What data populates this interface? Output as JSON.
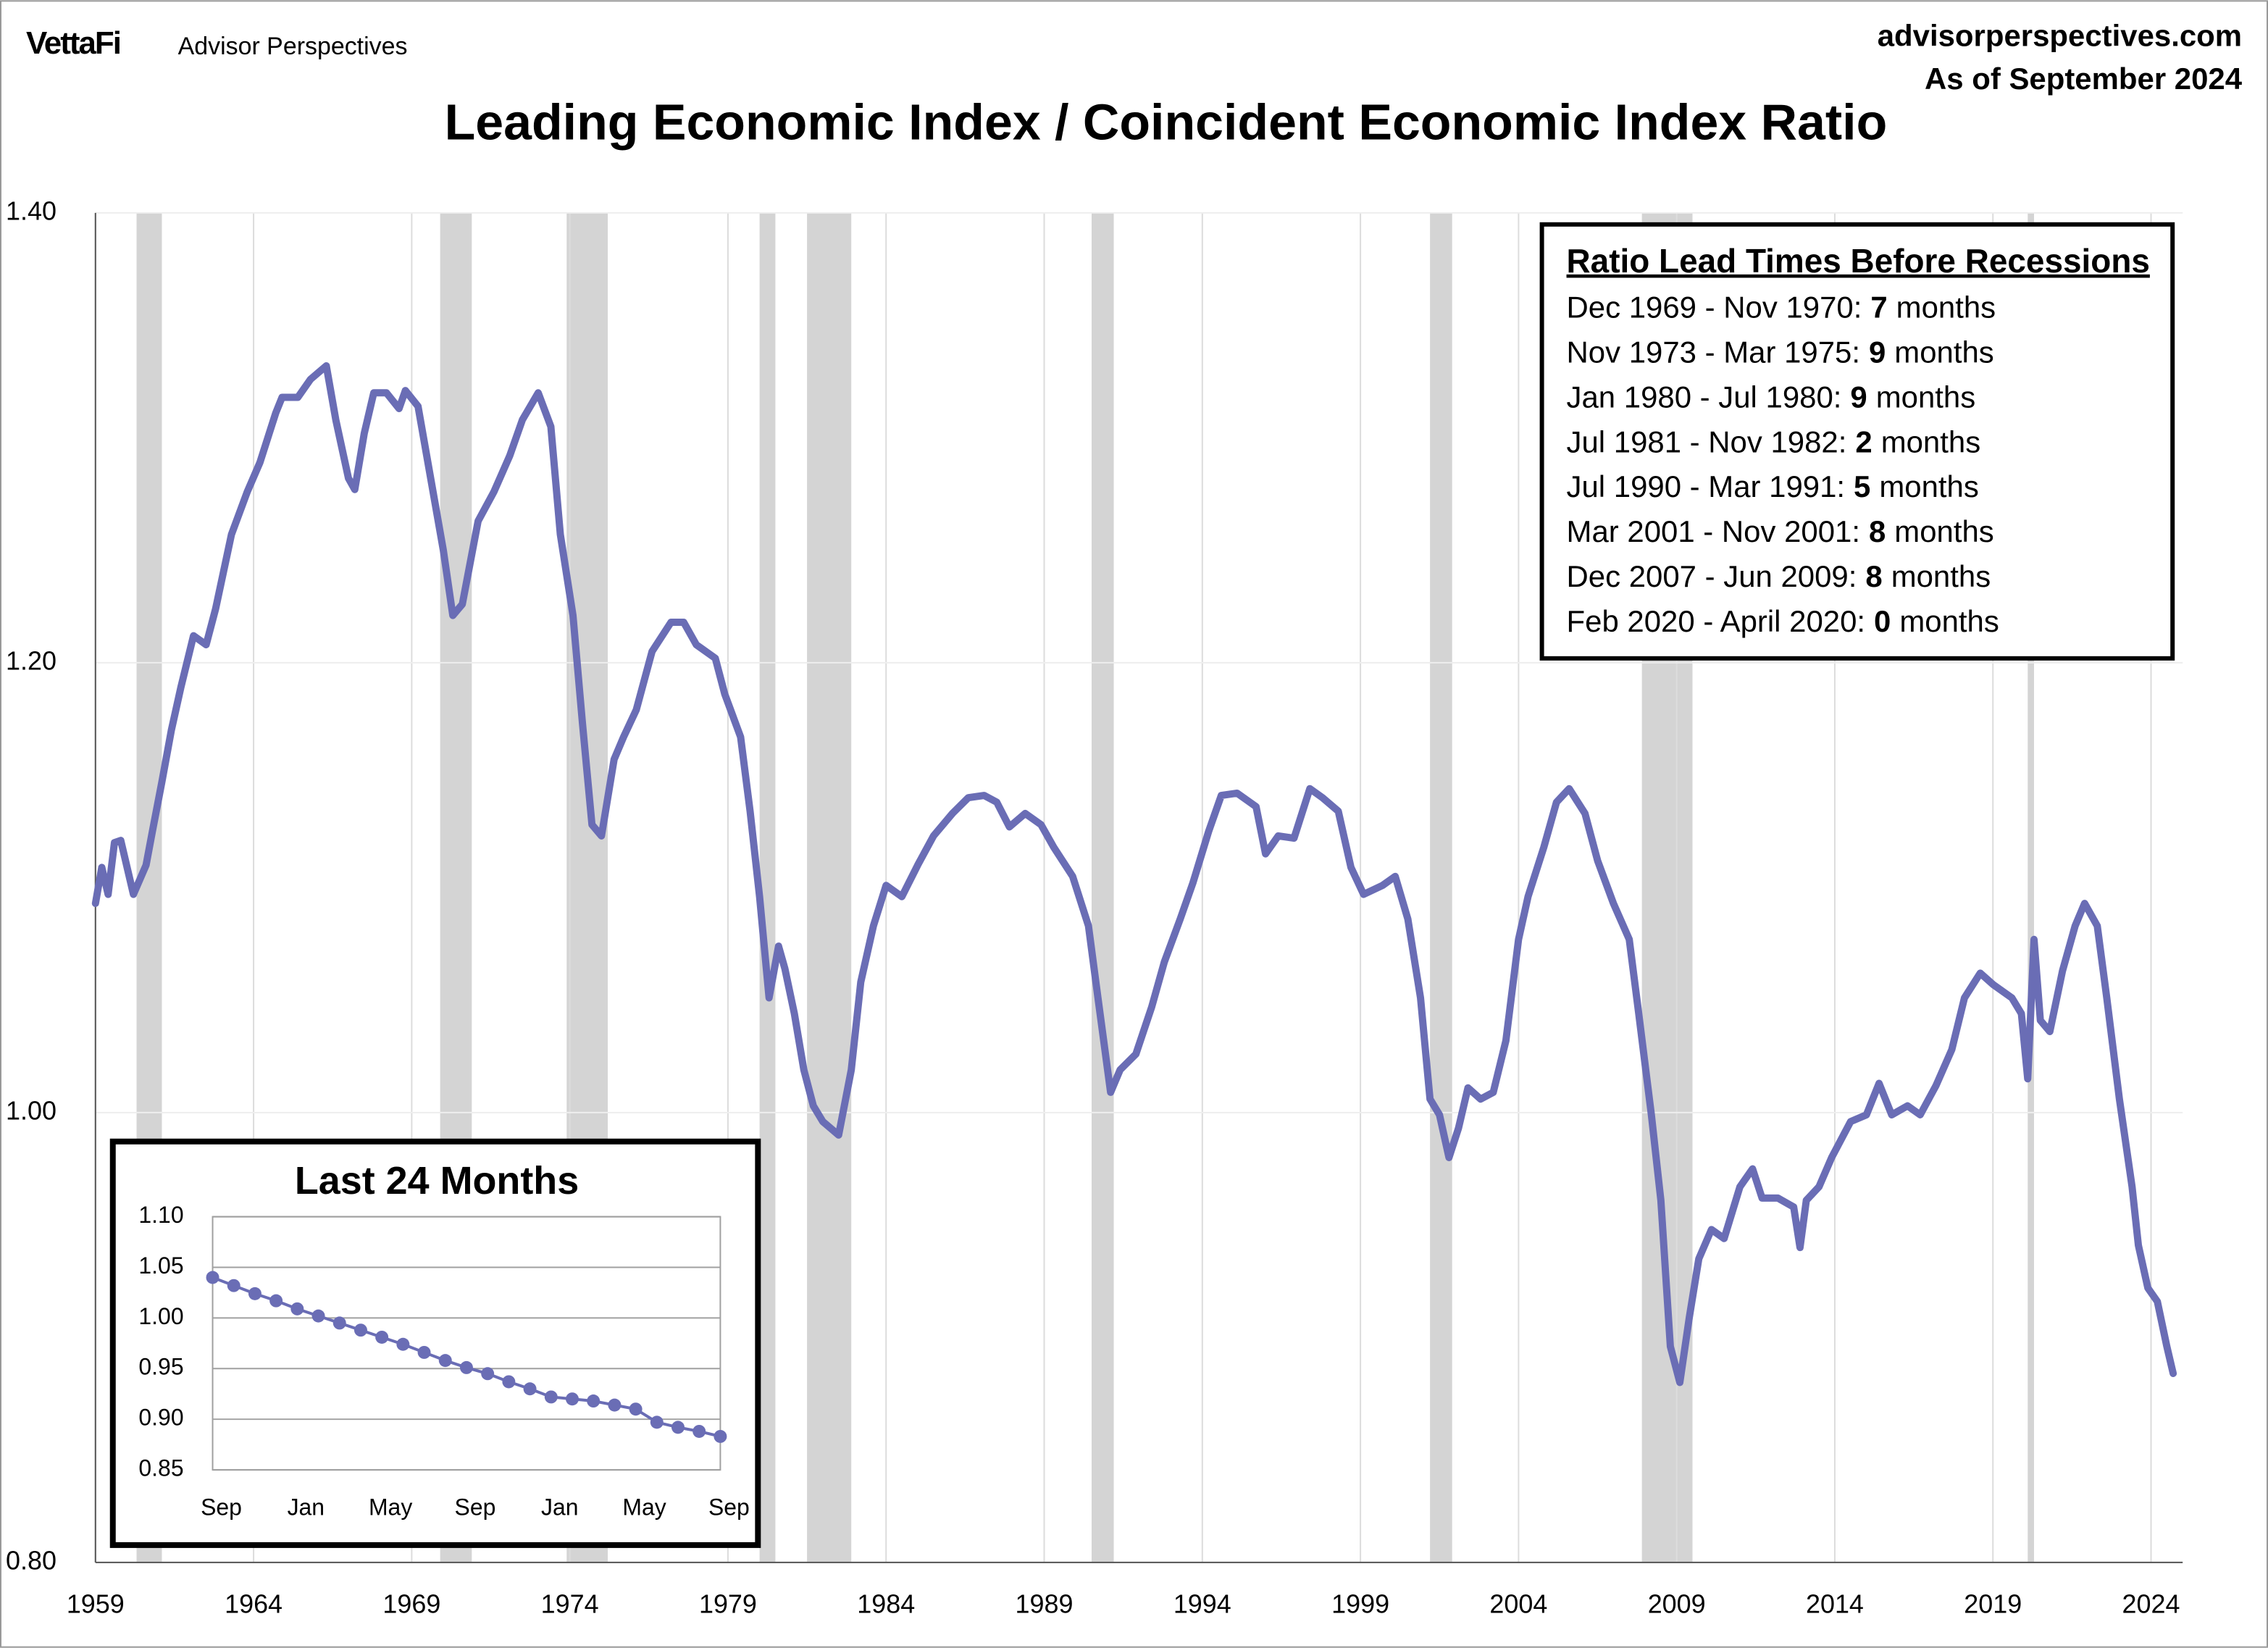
{
  "header": {
    "logo": "VettaFi",
    "brand": "Advisor Perspectives",
    "site": "advisorperspectives.com",
    "date": "As of September 2024"
  },
  "chart_data": [
    {
      "type": "line",
      "title": "Leading Economic Index / Coincident Economic Index Ratio",
      "color": "#6a6db5",
      "xlim": [
        1959,
        2025
      ],
      "xticks": [
        1959,
        1964,
        1969,
        1974,
        1979,
        1984,
        1989,
        1994,
        1999,
        2004,
        2009,
        2014,
        2019,
        2024
      ],
      "ylim": [
        0.8,
        1.4
      ],
      "yticks": [
        {
          "value": 0.8,
          "label": "0.80"
        },
        {
          "value": 1.0,
          "label": "1.00"
        },
        {
          "value": 1.2,
          "label": "1.20"
        },
        {
          "value": 1.4,
          "label": "1.40"
        }
      ],
      "grid": true,
      "recession_periods": [
        [
          1960.3,
          1961.1
        ],
        [
          1969.9,
          1970.9
        ],
        [
          1973.9,
          1975.2
        ],
        [
          1980.0,
          1980.5
        ],
        [
          1981.5,
          1982.9
        ],
        [
          1990.5,
          1991.2
        ],
        [
          2001.2,
          2001.9
        ],
        [
          2007.9,
          2009.5
        ],
        [
          2020.1,
          2020.3
        ]
      ],
      "x": [
        1959.0,
        1959.2,
        1959.4,
        1959.6,
        1959.8,
        1960.2,
        1960.6,
        1960.8,
        1961.1,
        1961.4,
        1961.7,
        1962.1,
        1962.5,
        1962.8,
        1963.3,
        1963.8,
        1964.2,
        1964.7,
        1964.9,
        1965.4,
        1965.8,
        1966.3,
        1966.6,
        1967.0,
        1967.2,
        1967.5,
        1967.8,
        1968.2,
        1968.6,
        1968.8,
        1969.2,
        1969.6,
        1970.0,
        1970.3,
        1970.6,
        1971.1,
        1971.6,
        1972.1,
        1972.5,
        1973.0,
        1973.4,
        1973.7,
        1974.1,
        1974.4,
        1974.7,
        1975.0,
        1975.4,
        1975.7,
        1976.1,
        1976.6,
        1977.2,
        1977.6,
        1978.0,
        1978.6,
        1978.9,
        1979.4,
        1979.7,
        1980.0,
        1980.3,
        1980.6,
        1980.8,
        1981.1,
        1981.4,
        1981.7,
        1982.0,
        1982.5,
        1982.9,
        1983.2,
        1983.6,
        1984.0,
        1984.5,
        1985.0,
        1985.5,
        1986.1,
        1986.6,
        1987.1,
        1987.5,
        1987.9,
        1988.4,
        1988.9,
        1989.3,
        1989.9,
        1990.4,
        1990.7,
        1991.1,
        1991.4,
        1991.9,
        1992.4,
        1992.8,
        1993.3,
        1993.7,
        1994.2,
        1994.6,
        1995.1,
        1995.7,
        1996.0,
        1996.4,
        1996.9,
        1997.4,
        1997.8,
        1998.3,
        1998.7,
        1999.1,
        1999.7,
        2000.1,
        2000.5,
        2000.9,
        2001.2,
        2001.5,
        2001.8,
        2002.1,
        2002.4,
        2002.8,
        2003.2,
        2003.6,
        2004.0,
        2004.3,
        2004.8,
        2005.2,
        2005.6,
        2006.1,
        2006.5,
        2007.0,
        2007.5,
        2007.8,
        2008.2,
        2008.5,
        2008.8,
        2009.1,
        2009.4,
        2009.7,
        2010.1,
        2010.5,
        2011.0,
        2011.4,
        2011.7,
        2012.2,
        2012.7,
        2012.9,
        2013.1,
        2013.5,
        2013.9,
        2014.5,
        2015.0,
        2015.4,
        2015.8,
        2016.3,
        2016.7,
        2017.2,
        2017.7,
        2018.1,
        2018.6,
        2019.0,
        2019.6,
        2019.9,
        2020.1,
        2020.3,
        2020.5,
        2020.8,
        2021.2,
        2021.6,
        2021.9,
        2022.3,
        2022.6,
        2023.0,
        2023.4,
        2023.6,
        2023.9,
        2024.2,
        2024.5,
        2024.7
      ],
      "values": [
        1.093,
        1.109,
        1.097,
        1.12,
        1.121,
        1.097,
        1.11,
        1.125,
        1.147,
        1.17,
        1.189,
        1.212,
        1.208,
        1.224,
        1.257,
        1.276,
        1.289,
        1.311,
        1.318,
        1.318,
        1.326,
        1.332,
        1.308,
        1.282,
        1.277,
        1.302,
        1.32,
        1.32,
        1.313,
        1.321,
        1.314,
        1.282,
        1.25,
        1.221,
        1.226,
        1.263,
        1.276,
        1.292,
        1.308,
        1.32,
        1.305,
        1.257,
        1.221,
        1.173,
        1.128,
        1.123,
        1.157,
        1.167,
        1.179,
        1.205,
        1.218,
        1.218,
        1.208,
        1.202,
        1.186,
        1.167,
        1.134,
        1.096,
        1.051,
        1.074,
        1.064,
        1.044,
        1.019,
        1.003,
        0.996,
        0.99,
        1.019,
        1.058,
        1.083,
        1.101,
        1.096,
        1.11,
        1.123,
        1.133,
        1.14,
        1.141,
        1.138,
        1.127,
        1.133,
        1.128,
        1.118,
        1.105,
        1.083,
        1.051,
        1.009,
        1.019,
        1.026,
        1.047,
        1.067,
        1.086,
        1.102,
        1.125,
        1.141,
        1.142,
        1.136,
        1.115,
        1.123,
        1.122,
        1.144,
        1.14,
        1.134,
        1.109,
        1.097,
        1.101,
        1.105,
        1.086,
        1.051,
        1.006,
        0.999,
        0.98,
        0.993,
        1.011,
        1.006,
        1.009,
        1.032,
        1.077,
        1.096,
        1.118,
        1.138,
        1.144,
        1.133,
        1.112,
        1.093,
        1.077,
        1.044,
        0.999,
        0.961,
        0.896,
        0.88,
        0.909,
        0.935,
        0.948,
        0.944,
        0.967,
        0.975,
        0.962,
        0.962,
        0.958,
        0.94,
        0.961,
        0.967,
        0.98,
        0.996,
        0.999,
        1.013,
        0.999,
        1.003,
        0.999,
        1.012,
        1.028,
        1.051,
        1.062,
        1.057,
        1.051,
        1.044,
        1.015,
        1.077,
        1.041,
        1.036,
        1.063,
        1.083,
        1.093,
        1.083,
        1.051,
        1.006,
        0.967,
        0.941,
        0.922,
        0.916,
        0.896,
        0.884
      ],
      "annotation": {
        "title": "Ratio Lead Times Before Recessions",
        "rows": [
          {
            "period": "Dec 1969 - Nov 1970:",
            "lead": 7,
            "unit": "months"
          },
          {
            "period": "Nov 1973 - Mar 1975:",
            "lead": 9,
            "unit": "months"
          },
          {
            "period": "Jan 1980 - Jul 1980:",
            "lead": 9,
            "unit": "months"
          },
          {
            "period": "Jul 1981 - Nov 1982:",
            "lead": 2,
            "unit": "months"
          },
          {
            "period": "Jul 1990 - Mar 1991:",
            "lead": 5,
            "unit": "months"
          },
          {
            "period": "Mar 2001 - Nov 2001:",
            "lead": 8,
            "unit": "months"
          },
          {
            "period": "Dec 2007 - Jun 2009:",
            "lead": 8,
            "unit": "months"
          },
          {
            "period": "Feb 2020 - April 2020:",
            "lead": 0,
            "unit": "months"
          }
        ]
      }
    },
    {
      "type": "line",
      "title": "Last 24 Months",
      "color": "#6a6db5",
      "markers": true,
      "grid": true,
      "categories": [
        "Sep",
        null,
        null,
        null,
        "Jan",
        null,
        null,
        null,
        "May",
        null,
        null,
        null,
        "Sep",
        null,
        null,
        null,
        "Jan",
        null,
        null,
        null,
        "May",
        null,
        null,
        null,
        "Sep"
      ],
      "values": [
        1.04,
        1.032,
        1.024,
        1.017,
        1.009,
        1.002,
        0.995,
        0.988,
        0.981,
        0.974,
        0.966,
        0.958,
        0.951,
        0.945,
        0.937,
        0.93,
        0.922,
        0.92,
        0.918,
        0.914,
        0.91,
        0.897,
        0.892,
        0.888,
        0.883
      ],
      "ylim": [
        0.85,
        1.1
      ],
      "yticks": [
        {
          "value": 0.85,
          "label": "0.85"
        },
        {
          "value": 0.9,
          "label": "0.90"
        },
        {
          "value": 0.95,
          "label": "0.95"
        },
        {
          "value": 1.0,
          "label": "1.00"
        },
        {
          "value": 1.05,
          "label": "1.05"
        },
        {
          "value": 1.1,
          "label": "1.10"
        }
      ]
    }
  ]
}
